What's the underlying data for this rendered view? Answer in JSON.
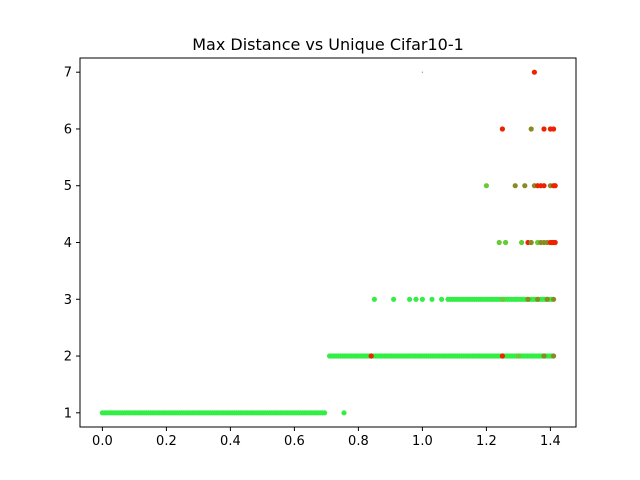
{
  "chart_data": {
    "type": "scatter",
    "title": "Max Distance vs Unique Cifar10-1",
    "xlabel": "",
    "ylabel": "",
    "xlim": [
      -0.07,
      1.48
    ],
    "ylim": [
      0.75,
      7.25
    ],
    "xticks": [
      0.0,
      0.2,
      0.4,
      0.6,
      0.8,
      1.0,
      1.2,
      1.4
    ],
    "xtick_labels": [
      "0.0",
      "0.2",
      "0.4",
      "0.6",
      "0.8",
      "1.0",
      "1.2",
      "1.4"
    ],
    "yticks": [
      1,
      2,
      3,
      4,
      5,
      6,
      7
    ],
    "ytick_labels": [
      "1",
      "2",
      "3",
      "4",
      "5",
      "6",
      "7"
    ],
    "grid": false,
    "legend": "none",
    "colors": {
      "green": "#33ee44",
      "mid_green": "#66cc33",
      "olive": "#8a8a22",
      "red": "#ee2200"
    },
    "ranges": [
      {
        "y": 1,
        "x_start": 0.0,
        "x_end": 0.7,
        "color": "green"
      },
      {
        "y": 2,
        "x_start": 0.71,
        "x_end": 1.41,
        "color": "green"
      },
      {
        "y": 3,
        "x_start": 1.08,
        "x_end": 1.41,
        "color": "green"
      }
    ],
    "points": [
      {
        "x": 0.755,
        "y": 1,
        "color": "green"
      },
      {
        "x": 0.84,
        "y": 2,
        "color": "red"
      },
      {
        "x": 1.25,
        "y": 2,
        "color": "red"
      },
      {
        "x": 1.3,
        "y": 2,
        "color": "mid_green"
      },
      {
        "x": 1.38,
        "y": 2,
        "color": "olive"
      },
      {
        "x": 1.41,
        "y": 2,
        "color": "olive"
      },
      {
        "x": 0.85,
        "y": 3,
        "color": "green"
      },
      {
        "x": 0.91,
        "y": 3,
        "color": "green"
      },
      {
        "x": 0.96,
        "y": 3,
        "color": "green"
      },
      {
        "x": 0.98,
        "y": 3,
        "color": "green"
      },
      {
        "x": 1.0,
        "y": 3,
        "color": "green"
      },
      {
        "x": 1.03,
        "y": 3,
        "color": "green"
      },
      {
        "x": 1.06,
        "y": 3,
        "color": "green"
      },
      {
        "x": 1.25,
        "y": 3,
        "color": "mid_green"
      },
      {
        "x": 1.33,
        "y": 3,
        "color": "olive"
      },
      {
        "x": 1.36,
        "y": 3,
        "color": "olive"
      },
      {
        "x": 1.39,
        "y": 3,
        "color": "olive"
      },
      {
        "x": 1.41,
        "y": 3,
        "color": "olive"
      },
      {
        "x": 1.24,
        "y": 4,
        "color": "mid_green"
      },
      {
        "x": 1.26,
        "y": 4,
        "color": "mid_green"
      },
      {
        "x": 1.31,
        "y": 4,
        "color": "mid_green"
      },
      {
        "x": 1.33,
        "y": 4,
        "color": "red"
      },
      {
        "x": 1.34,
        "y": 4,
        "color": "olive"
      },
      {
        "x": 1.36,
        "y": 4,
        "color": "mid_green"
      },
      {
        "x": 1.37,
        "y": 4,
        "color": "olive"
      },
      {
        "x": 1.38,
        "y": 4,
        "color": "olive"
      },
      {
        "x": 1.39,
        "y": 4,
        "color": "olive"
      },
      {
        "x": 1.4,
        "y": 4,
        "color": "red"
      },
      {
        "x": 1.405,
        "y": 4,
        "color": "red"
      },
      {
        "x": 1.41,
        "y": 4,
        "color": "red"
      },
      {
        "x": 1.415,
        "y": 4,
        "color": "red"
      },
      {
        "x": 1.2,
        "y": 5,
        "color": "mid_green"
      },
      {
        "x": 1.29,
        "y": 5,
        "color": "olive"
      },
      {
        "x": 1.32,
        "y": 5,
        "color": "olive"
      },
      {
        "x": 1.35,
        "y": 5,
        "color": "olive"
      },
      {
        "x": 1.36,
        "y": 5,
        "color": "red"
      },
      {
        "x": 1.37,
        "y": 5,
        "color": "red"
      },
      {
        "x": 1.38,
        "y": 5,
        "color": "red"
      },
      {
        "x": 1.4,
        "y": 5,
        "color": "olive"
      },
      {
        "x": 1.41,
        "y": 5,
        "color": "red"
      },
      {
        "x": 1.415,
        "y": 5,
        "color": "red"
      },
      {
        "x": 1.25,
        "y": 6,
        "color": "red"
      },
      {
        "x": 1.34,
        "y": 6,
        "color": "olive"
      },
      {
        "x": 1.38,
        "y": 6,
        "color": "red"
      },
      {
        "x": 1.4,
        "y": 6,
        "color": "red"
      },
      {
        "x": 1.41,
        "y": 6,
        "color": "red"
      },
      {
        "x": 1.35,
        "y": 7,
        "color": "red"
      },
      {
        "x": 1.0,
        "y": 7,
        "color": "olive"
      }
    ]
  }
}
